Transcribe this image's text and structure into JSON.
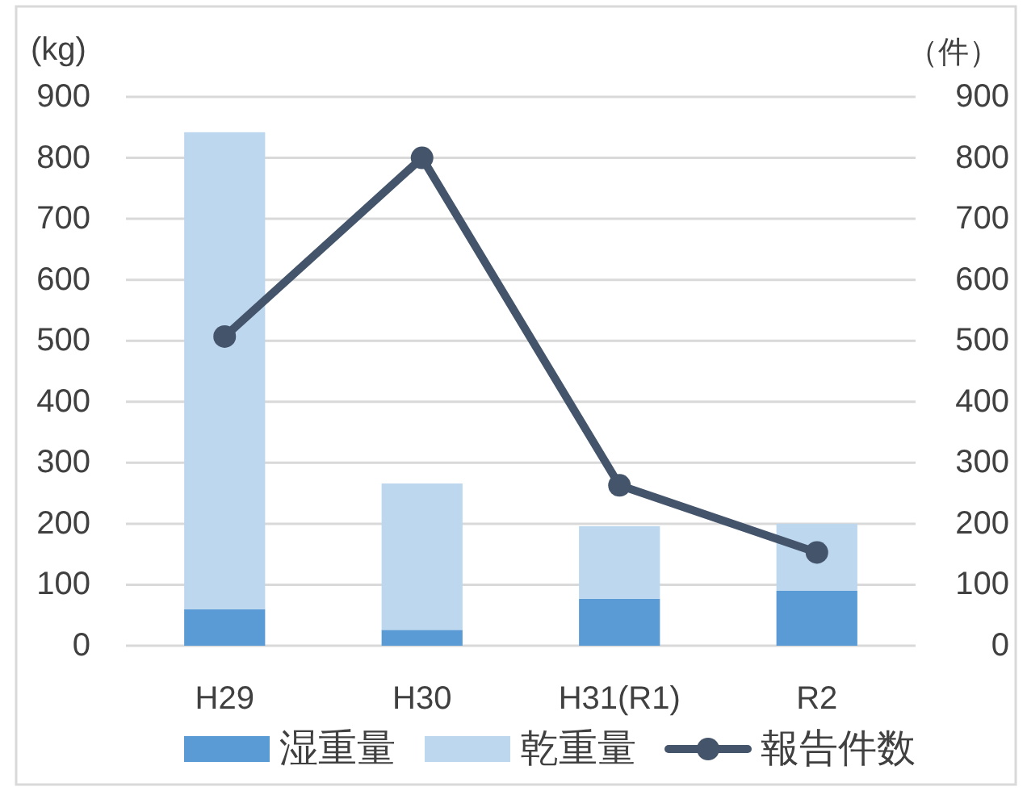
{
  "chart_data": {
    "type": "bar",
    "stacked": true,
    "categories": [
      "H29",
      "H30",
      "H31(R1)",
      "R2"
    ],
    "series": [
      {
        "name": "湿重量",
        "color": "#5b9bd5",
        "values": [
          60,
          26,
          77,
          90
        ]
      },
      {
        "name": "乾重量",
        "color": "#bdd7ee",
        "values": [
          782,
          240,
          119,
          110
        ]
      },
      {
        "name": "報告件数",
        "type": "line",
        "axis": "y2",
        "color": "#44546a",
        "values": [
          507,
          800,
          263,
          153
        ]
      }
    ],
    "ylabel": "(kg)",
    "y2label": "（件）",
    "ylim": [
      0,
      900
    ],
    "yticks": [
      0,
      100,
      200,
      300,
      400,
      500,
      600,
      700,
      800,
      900
    ],
    "y2lim": [
      0,
      900
    ],
    "y2ticks": [
      0,
      100,
      200,
      300,
      400,
      500,
      600,
      700,
      800,
      900
    ],
    "grid": "y",
    "legend": "bottom",
    "marker": "circle",
    "line_style": "solid"
  }
}
